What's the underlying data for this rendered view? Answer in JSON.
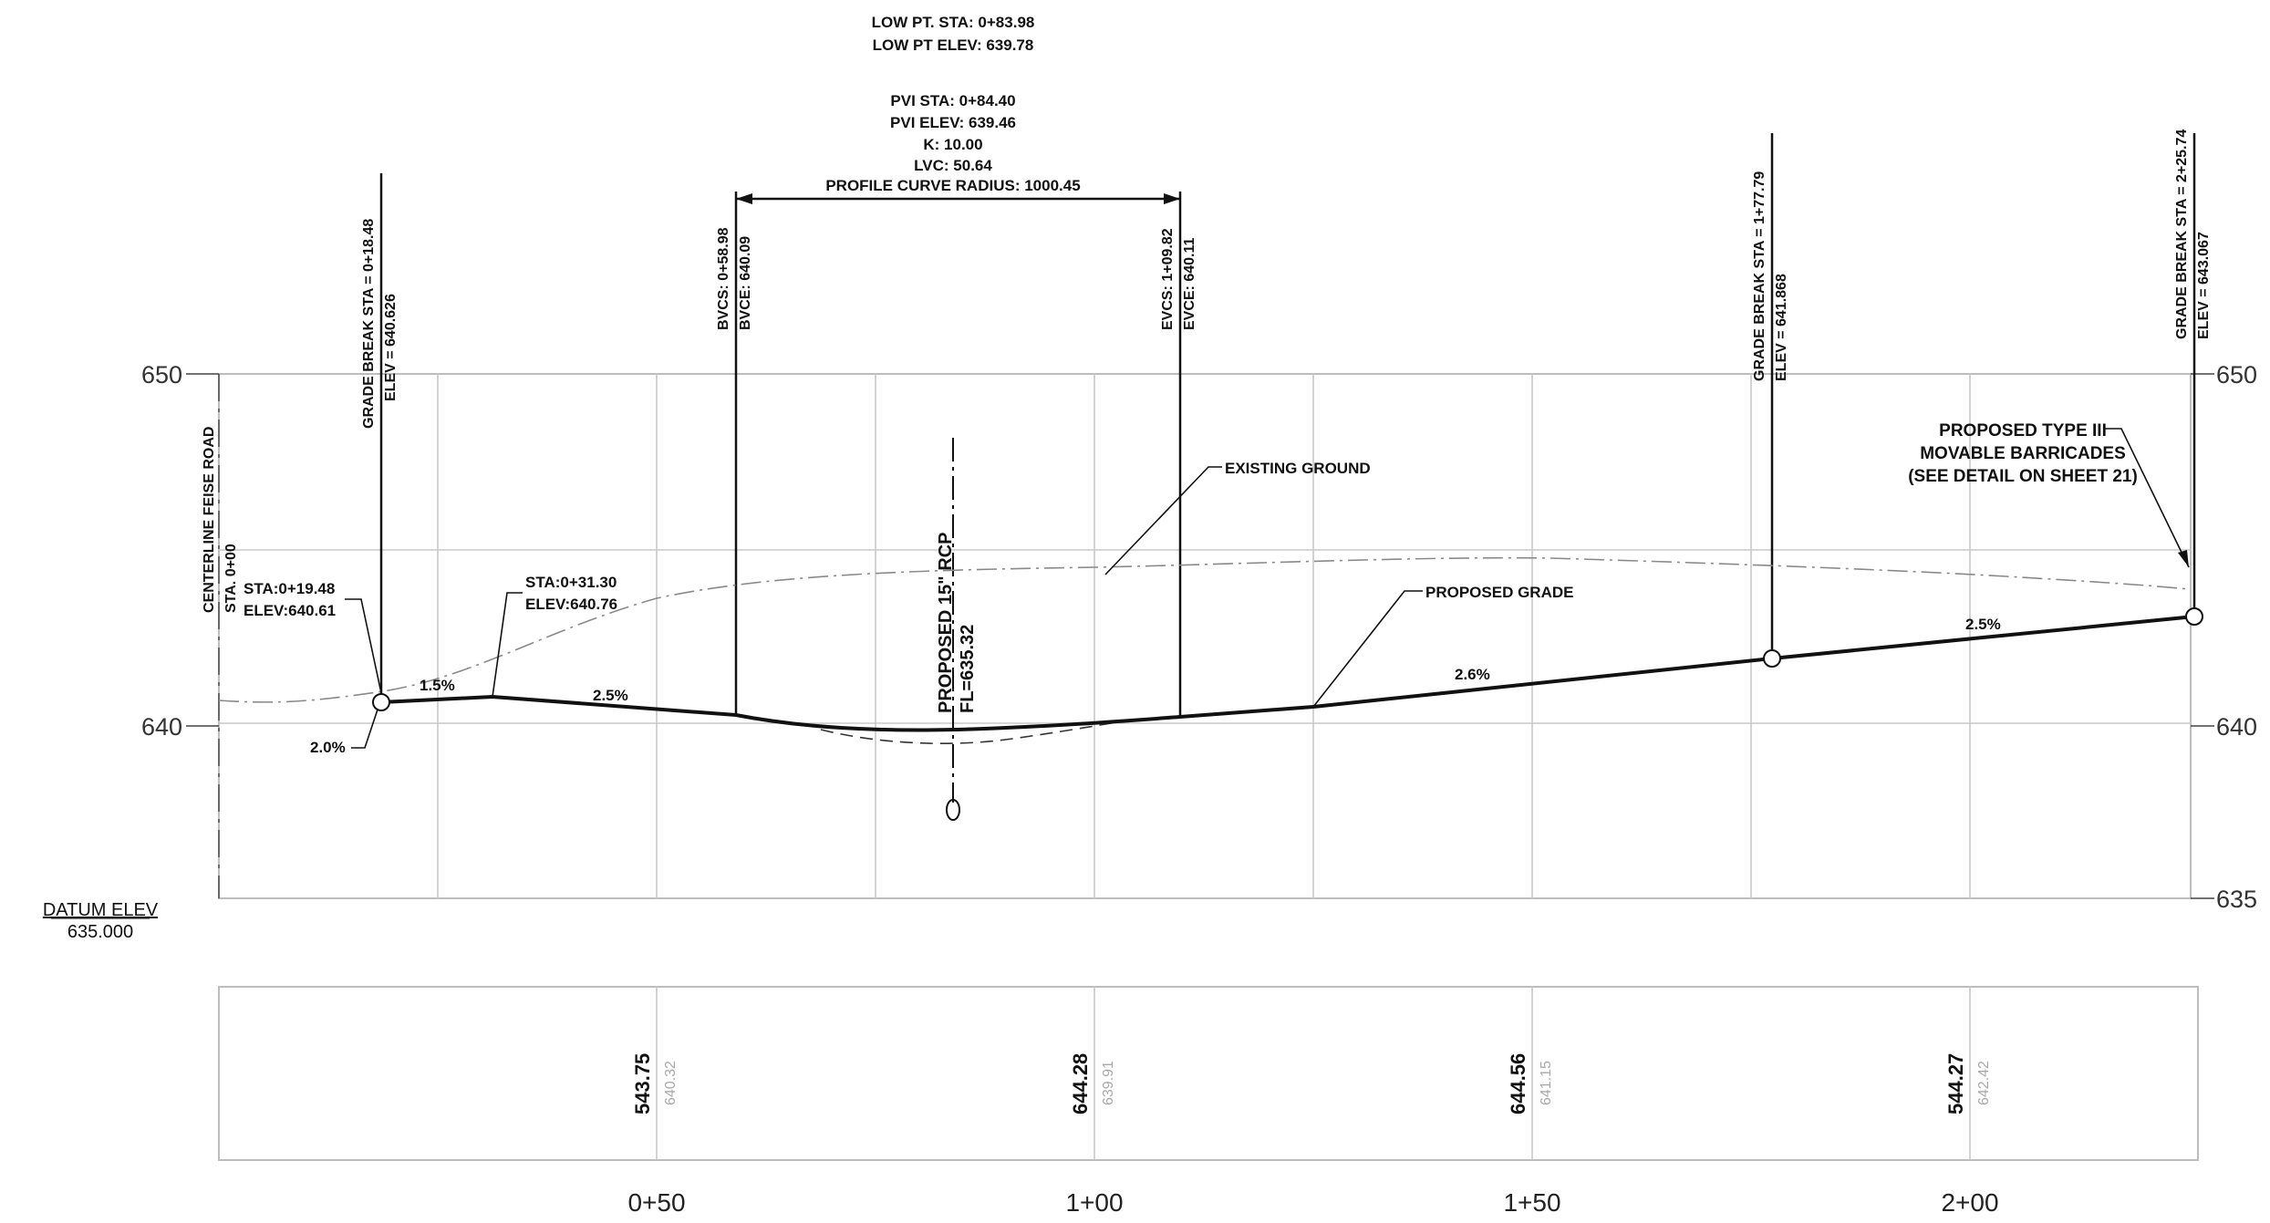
{
  "header": {
    "low_pt_sta": "LOW PT. STA: 0+83.98",
    "low_pt_elev": "LOW PT ELEV: 639.78",
    "pvi_sta": "PVI STA: 0+84.40",
    "pvi_elev": "PVI ELEV: 639.46",
    "k": "K: 10.00",
    "lvc": "LVC: 50.64",
    "radius": "PROFILE CURVE RADIUS: 1000.45"
  },
  "vertical_labels": {
    "gb1_sta": "GRADE BREAK STA = 0+18.48",
    "gb1_elev": "ELEV = 640.626",
    "bvcs": "BVCS: 0+58.98",
    "bvce": "BVCE: 640.09",
    "evcs": "EVCS: 1+09.82",
    "evce": "EVCE: 640.11",
    "gb2_sta": "GRADE BREAK STA = 1+77.79",
    "gb2_elev": "ELEV = 641.868",
    "gb3_sta": "GRADE BREAK STA = 2+25.74",
    "gb3_elev": "ELEV = 643.067",
    "centerline": "CENTERLINE FEISE ROAD",
    "sta0": "STA. 0+00",
    "rcp": "PROPOSED 15\" RCP",
    "rcp_fl": "FL=635.32"
  },
  "annotations": {
    "existing_ground": "EXISTING GROUND",
    "proposed_grade": "PROPOSED GRADE",
    "barricade_1": "PROPOSED TYPE III",
    "barricade_2": "MOVABLE BARRICADES",
    "barricade_3": "(SEE DETAIL ON SHEET 21)",
    "sta1_a": "STA:0+19.48",
    "sta1_b": "ELEV:640.61",
    "sta2_a": "STA:0+31.30",
    "sta2_b": "ELEV:640.76",
    "grade_15": "1.5%",
    "grade_25a": "2.5%",
    "grade_26": "2.6%",
    "grade_25b": "2.5%",
    "grade_20": "2.0%"
  },
  "axis": {
    "left": [
      "650",
      "640"
    ],
    "right": [
      "650",
      "640",
      "635"
    ],
    "datum_label": "DATUM ELEV",
    "datum_value": "635.000"
  },
  "stations": [
    "0+50",
    "1+00",
    "1+50",
    "2+00"
  ],
  "elevation_band": [
    {
      "proposed": "543.75",
      "existing": "640.32"
    },
    {
      "proposed": "644.28",
      "existing": "639.91"
    },
    {
      "proposed": "644.56",
      "existing": "641.15"
    },
    {
      "proposed": "544.27",
      "existing": "642.42"
    }
  ]
}
